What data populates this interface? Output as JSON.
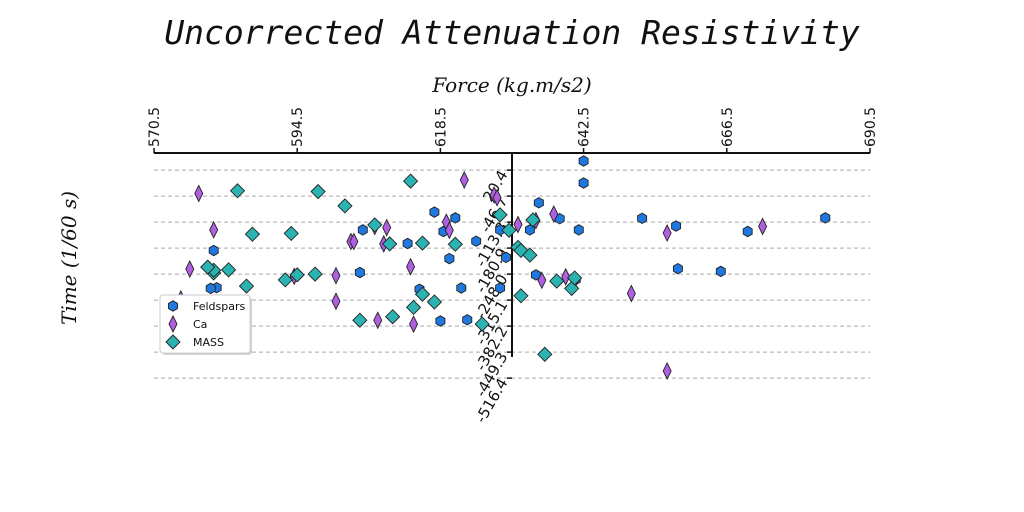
{
  "chart_data": {
    "type": "scatter",
    "title": "Uncorrected Attenuation Resistivity",
    "xlabel": "Force (kg.m/s2)",
    "ylabel": "Time (1/60 s)",
    "xlim": [
      570.5,
      690.5
    ],
    "ylim": [
      -560,
      60
    ],
    "x_ticks": [
      "570.5",
      "594.5",
      "618.5",
      "642.5",
      "666.5",
      "690.5"
    ],
    "y_ticks": [
      "20.4",
      "-46.7",
      "-113.8",
      "-180.9",
      "-248.0",
      "-315.1",
      "-382.2",
      "-449.3",
      "-516.4"
    ],
    "y_tick_values": [
      20.4,
      -46.7,
      -113.8,
      -180.9,
      -248.0,
      -315.1,
      -382.2,
      -449.3,
      -516.4
    ],
    "gridlines": "horizontal dashed",
    "legend_position": "lower-left",
    "series": [
      {
        "name": "Feldspars",
        "marker": "hexagon",
        "color": "#1f77e0",
        "points": [
          [
            642.5,
            44
          ],
          [
            642.5,
            -13
          ],
          [
            635,
            -64
          ],
          [
            617.5,
            -88
          ],
          [
            621,
            -103
          ],
          [
            638.5,
            -105
          ],
          [
            633.5,
            -134
          ],
          [
            652.3,
            -104
          ],
          [
            658,
            -124
          ],
          [
            628.5,
            -134
          ],
          [
            641.7,
            -134
          ],
          [
            605.5,
            -134
          ],
          [
            619,
            -138
          ],
          [
            624.5,
            -163
          ],
          [
            613,
            -169
          ],
          [
            629.5,
            -205
          ],
          [
            580.5,
            -187
          ],
          [
            658.3,
            -234
          ],
          [
            620,
            -208
          ],
          [
            665.5,
            -241
          ],
          [
            670,
            -138
          ],
          [
            683,
            -103
          ],
          [
            641.2,
            -262
          ],
          [
            634.5,
            -250
          ],
          [
            605,
            -244
          ],
          [
            622,
            -284
          ],
          [
            628.5,
            -284
          ],
          [
            615,
            -287
          ],
          [
            581,
            -283
          ],
          [
            580,
            -285
          ],
          [
            618.5,
            -369
          ],
          [
            623,
            -366
          ]
        ]
      },
      {
        "name": "Ca",
        "marker": "thin-diamond",
        "color": "#b05fe0",
        "points": [
          [
            578,
            -40
          ],
          [
            622.5,
            -5
          ],
          [
            627.5,
            -44
          ],
          [
            628,
            -51
          ],
          [
            637.5,
            -93
          ],
          [
            631.5,
            -120
          ],
          [
            619.5,
            -114
          ],
          [
            620,
            -135
          ],
          [
            634.5,
            -110
          ],
          [
            580.5,
            -134
          ],
          [
            607.5,
            -125
          ],
          [
            609.5,
            -128
          ],
          [
            603.5,
            -164
          ],
          [
            604,
            -164
          ],
          [
            609,
            -170
          ],
          [
            613.5,
            -229
          ],
          [
            576.5,
            -235
          ],
          [
            594,
            -254
          ],
          [
            639.5,
            -255
          ],
          [
            635.5,
            -264
          ],
          [
            601,
            -252
          ],
          [
            650.5,
            -298
          ],
          [
            656.5,
            -142
          ],
          [
            672.5,
            -125
          ],
          [
            575,
            -312
          ],
          [
            601,
            -318
          ],
          [
            608,
            -367
          ],
          [
            614,
            -377
          ],
          [
            656.5,
            -498
          ],
          [
            641,
            -265
          ]
        ]
      },
      {
        "name": "MASS",
        "marker": "diamond",
        "color": "#2bb3b1",
        "points": [
          [
            584.5,
            -33
          ],
          [
            598,
            -35
          ],
          [
            613.5,
            -8
          ],
          [
            602.5,
            -72
          ],
          [
            593.5,
            -143
          ],
          [
            587,
            -145
          ],
          [
            607.5,
            -121
          ],
          [
            610,
            -170
          ],
          [
            615.5,
            -168
          ],
          [
            634,
            -108
          ],
          [
            628.5,
            -95
          ],
          [
            630,
            -135
          ],
          [
            621,
            -171
          ],
          [
            631.5,
            -179
          ],
          [
            632,
            -187
          ],
          [
            633.5,
            -199
          ],
          [
            597.5,
            -248
          ],
          [
            594.5,
            -250
          ],
          [
            592.5,
            -263
          ],
          [
            580.5,
            -245
          ],
          [
            580.5,
            -238
          ],
          [
            579.5,
            -230
          ],
          [
            583,
            -237
          ],
          [
            586,
            -279
          ],
          [
            615.5,
            -300
          ],
          [
            617.5,
            -320
          ],
          [
            614,
            -334
          ],
          [
            610.5,
            -358
          ],
          [
            605,
            -367
          ],
          [
            632,
            -304
          ],
          [
            636,
            -455
          ],
          [
            640.5,
            -285
          ],
          [
            641,
            -258
          ],
          [
            638,
            -266
          ],
          [
            625.5,
            -377
          ]
        ]
      }
    ]
  }
}
